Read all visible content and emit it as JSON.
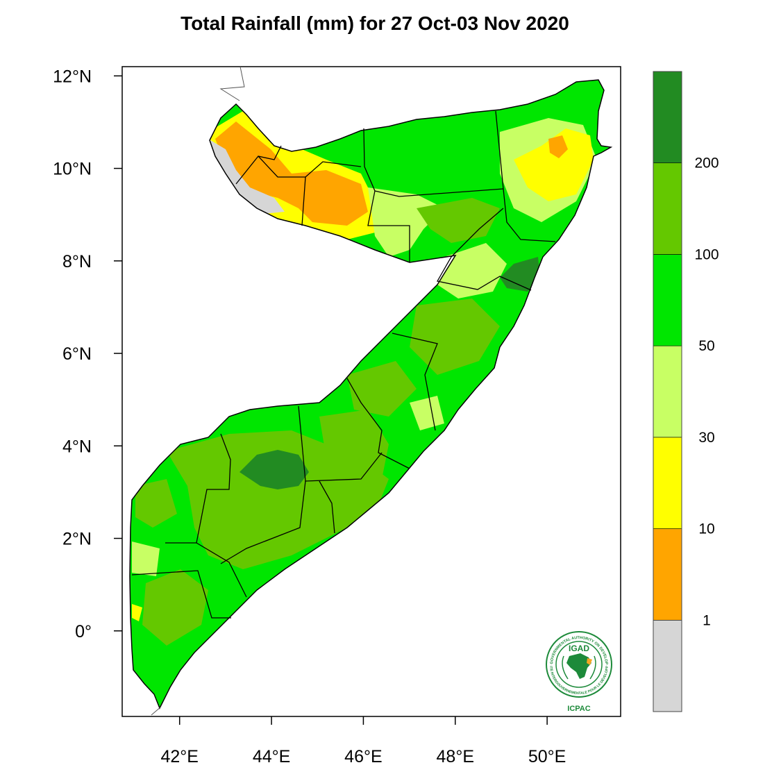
{
  "title": "Total Rainfall (mm) for 27 Oct-03 Nov 2020",
  "axes": {
    "x_ticks": [
      {
        "value": 42,
        "label": "42°E"
      },
      {
        "value": 44,
        "label": "44°E"
      },
      {
        "value": 46,
        "label": "46°E"
      },
      {
        "value": 48,
        "label": "48°E"
      },
      {
        "value": 50,
        "label": "50°E"
      }
    ],
    "y_ticks": [
      {
        "value": 12,
        "label": "12°N"
      },
      {
        "value": 10,
        "label": "10°N"
      },
      {
        "value": 8,
        "label": "8°N"
      },
      {
        "value": 6,
        "label": "6°N"
      },
      {
        "value": 4,
        "label": "4°N"
      },
      {
        "value": 2,
        "label": "2°N"
      },
      {
        "value": 0,
        "label": "0°"
      }
    ],
    "lon_range": [
      40.75,
      51.6
    ],
    "lat_range": [
      -1.85,
      12.2
    ]
  },
  "colorbar": {
    "bins": [
      {
        "color": "#d6d6d6",
        "range": "<1"
      },
      {
        "color": "#ffa500",
        "range": "1-10"
      },
      {
        "color": "#ffff00",
        "range": "10-30"
      },
      {
        "color": "#c8ff64",
        "range": "30-50"
      },
      {
        "color": "#00e600",
        "range": "50-100"
      },
      {
        "color": "#64c800",
        "range": "100-200"
      },
      {
        "color": "#228b22",
        "range": ">200"
      }
    ],
    "labels": [
      "1",
      "10",
      "30",
      "50",
      "100",
      "200"
    ]
  },
  "logo": {
    "top_text": "IGAD",
    "bottom_text": "ICPAC",
    "ring_text_top": "INTERGOVERNMENTAL AUTHORITY ON DEVELOPMENT",
    "ring_text_bottom": "AUTORITÉ INTERGOUVERNEMENTALE POUR LE DÉVELOPPEMENT"
  }
}
